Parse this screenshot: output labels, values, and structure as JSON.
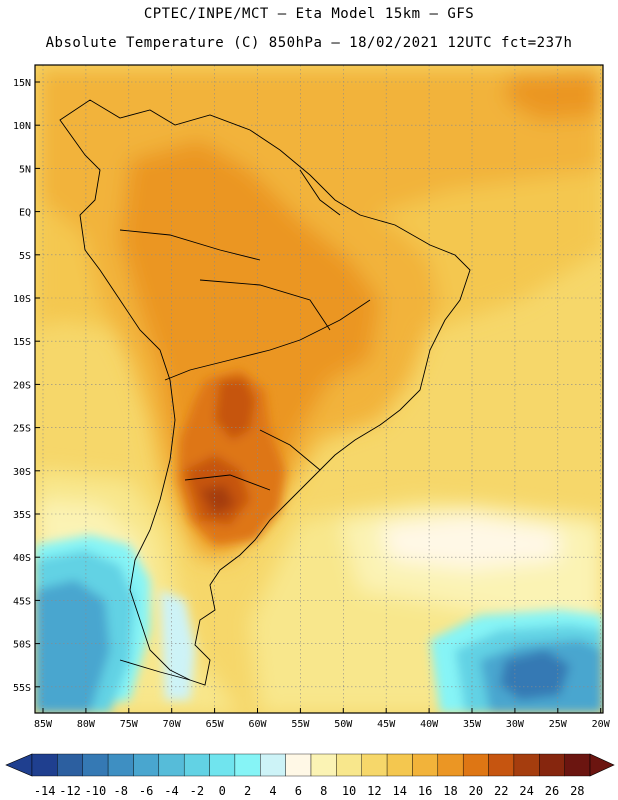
{
  "header": {
    "line1": "CPTEC/INPE/MCT –  Eta Model 15km – GFS",
    "line2": "Absolute Temperature (C) 850hPa – 18/02/2021 12UTC fct=237h"
  },
  "map": {
    "lat_ticks": [
      "15N",
      "10N",
      "5N",
      "EQ",
      "5S",
      "10S",
      "15S",
      "20S",
      "25S",
      "30S",
      "35S",
      "40S",
      "45S",
      "50S",
      "55S"
    ],
    "lon_ticks": [
      "85W",
      "80W",
      "75W",
      "70W",
      "65W",
      "60W",
      "55W",
      "50W",
      "45W",
      "40W",
      "35W",
      "30W",
      "25W",
      "20W"
    ]
  },
  "colorbar": {
    "labels": [
      "-14",
      "-12",
      "-10",
      "-8",
      "-6",
      "-4",
      "-2",
      "0",
      "2",
      "4",
      "6",
      "8",
      "10",
      "12",
      "14",
      "16",
      "18",
      "20",
      "22",
      "24",
      "26",
      "28"
    ],
    "colors": [
      "#1f3f8f",
      "#2c5fa0",
      "#3579b4",
      "#3e8fc2",
      "#49a6cf",
      "#56bcd9",
      "#62d2e4",
      "#70e4ee",
      "#86f4f6",
      "#cdf3f7",
      "#fff8e6",
      "#fbf3b4",
      "#f8e78c",
      "#f6d76a",
      "#f4c74f",
      "#f2b33a",
      "#eb9624",
      "#de7614",
      "#c65510",
      "#a53d0e",
      "#86260e",
      "#6b1510"
    ],
    "low_cap": "#1f3f8f",
    "high_cap": "#6b1510"
  }
}
